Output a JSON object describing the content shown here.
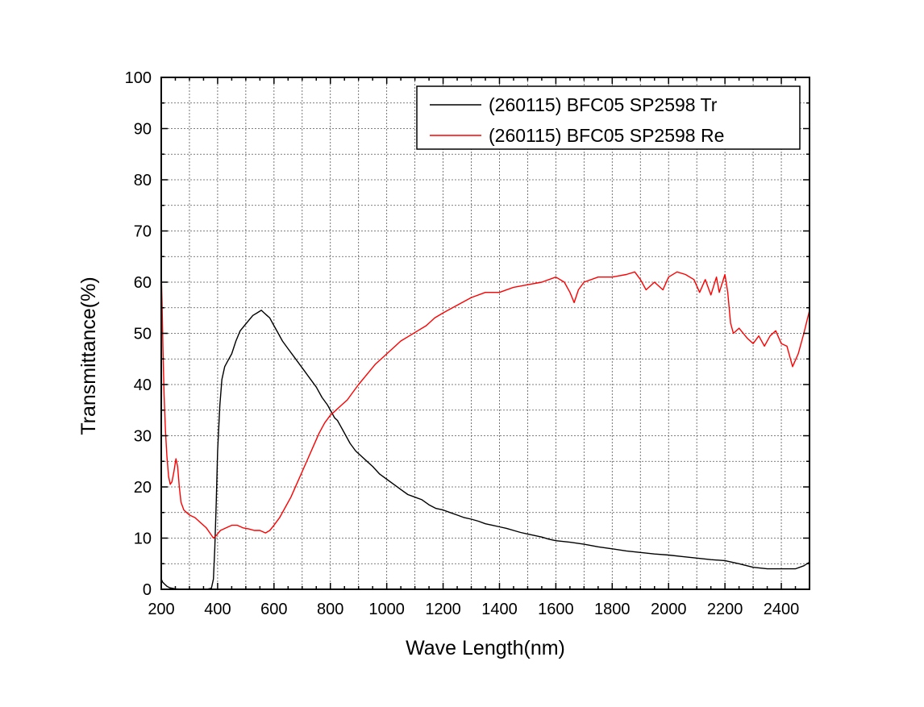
{
  "chart_data": {
    "type": "line",
    "xlabel": "Wave Length(nm)",
    "ylabel": "Transmittance(%)",
    "xlim": [
      200,
      2500
    ],
    "ylim": [
      0,
      100
    ],
    "x_ticks": [
      200,
      400,
      600,
      800,
      1000,
      1200,
      1400,
      1600,
      1800,
      2000,
      2200,
      2400
    ],
    "y_ticks": [
      0,
      10,
      20,
      30,
      40,
      50,
      60,
      70,
      80,
      90,
      100
    ],
    "grid": true,
    "legend_position": "top-right",
    "series": [
      {
        "name": "(260115) BFC05 SP2598 Tr",
        "color": "#000000",
        "x": [
          200,
          205,
          212,
          220,
          230,
          250,
          280,
          320,
          360,
          378,
          385,
          390,
          395,
          400,
          408,
          415,
          425,
          435,
          450,
          465,
          480,
          495,
          510,
          525,
          540,
          555,
          565,
          575,
          585,
          600,
          615,
          630,
          650,
          670,
          690,
          710,
          730,
          750,
          770,
          790,
          805,
          815,
          825,
          835,
          845,
          855,
          870,
          890,
          910,
          930,
          950,
          975,
          1000,
          1025,
          1050,
          1075,
          1100,
          1125,
          1150,
          1175,
          1200,
          1225,
          1250,
          1275,
          1300,
          1325,
          1350,
          1375,
          1400,
          1425,
          1450,
          1475,
          1500,
          1525,
          1550,
          1575,
          1600,
          1650,
          1700,
          1750,
          1800,
          1850,
          1900,
          1950,
          2000,
          2050,
          2100,
          2150,
          2200,
          2250,
          2300,
          2350,
          2400,
          2450,
          2480,
          2500
        ],
        "values": [
          2.0,
          1.4,
          1.0,
          0.6,
          0.3,
          0.1,
          0.0,
          0.0,
          0.0,
          0.2,
          2.0,
          8.0,
          17.0,
          27.0,
          36.0,
          41.0,
          43.5,
          44.5,
          46.0,
          48.5,
          50.5,
          51.5,
          52.5,
          53.5,
          54.0,
          54.5,
          54.0,
          53.5,
          53.0,
          51.5,
          50.0,
          48.5,
          47.0,
          45.5,
          44.0,
          42.5,
          41.0,
          39.5,
          37.5,
          36.0,
          34.5,
          33.5,
          33.0,
          32.0,
          31.0,
          30.0,
          28.5,
          27.0,
          26.0,
          25.0,
          24.0,
          22.5,
          21.5,
          20.5,
          19.5,
          18.5,
          18.0,
          17.5,
          16.5,
          15.8,
          15.5,
          15.0,
          14.5,
          14.0,
          13.7,
          13.3,
          12.8,
          12.5,
          12.2,
          11.9,
          11.5,
          11.1,
          10.8,
          10.5,
          10.2,
          9.8,
          9.5,
          9.2,
          8.8,
          8.3,
          7.9,
          7.5,
          7.2,
          6.9,
          6.7,
          6.4,
          6.1,
          5.8,
          5.6,
          5.0,
          4.3,
          4.0,
          4.0,
          4.0,
          4.6,
          5.3
        ]
      },
      {
        "name": "(260115) BFC05 SP2598 Re",
        "color": "#ff0000",
        "x": [
          200,
          203,
          206,
          210,
          215,
          220,
          226,
          232,
          238,
          245,
          252,
          258,
          264,
          270,
          280,
          290,
          300,
          320,
          340,
          360,
          375,
          385,
          395,
          410,
          430,
          450,
          470,
          490,
          510,
          530,
          550,
          570,
          585,
          600,
          620,
          640,
          660,
          680,
          700,
          720,
          740,
          760,
          780,
          800,
          820,
          840,
          860,
          880,
          900,
          930,
          960,
          990,
          1020,
          1050,
          1080,
          1110,
          1140,
          1170,
          1200,
          1250,
          1300,
          1350,
          1400,
          1450,
          1500,
          1550,
          1600,
          1630,
          1650,
          1665,
          1680,
          1700,
          1750,
          1800,
          1850,
          1880,
          1900,
          1920,
          1950,
          1980,
          2000,
          2030,
          2060,
          2090,
          2110,
          2130,
          2150,
          2170,
          2180,
          2200,
          2210,
          2220,
          2230,
          2250,
          2280,
          2300,
          2320,
          2340,
          2360,
          2380,
          2400,
          2420,
          2440,
          2460,
          2480,
          2500
        ],
        "values": [
          62.0,
          56.0,
          47.0,
          38.0,
          31.0,
          26.0,
          22.0,
          20.5,
          21.0,
          23.0,
          25.5,
          24.0,
          20.0,
          17.0,
          15.5,
          15.0,
          14.5,
          14.0,
          13.0,
          12.0,
          10.8,
          10.0,
          10.5,
          11.5,
          12.0,
          12.5,
          12.5,
          12.0,
          11.8,
          11.5,
          11.5,
          11.0,
          11.5,
          12.5,
          14.0,
          16.0,
          18.0,
          20.5,
          23.0,
          25.5,
          28.0,
          30.5,
          32.5,
          34.0,
          35.0,
          36.0,
          37.0,
          38.5,
          40.0,
          42.0,
          44.0,
          45.5,
          47.0,
          48.5,
          49.5,
          50.5,
          51.5,
          53.0,
          54.0,
          55.5,
          57.0,
          58.0,
          58.0,
          59.0,
          59.5,
          60.0,
          61.0,
          60.0,
          58.0,
          56.0,
          58.5,
          60.0,
          61.0,
          61.0,
          61.5,
          62.0,
          60.5,
          58.5,
          60.0,
          58.5,
          61.0,
          62.0,
          61.5,
          60.5,
          58.0,
          60.5,
          57.5,
          61.0,
          58.0,
          61.5,
          58.0,
          52.0,
          50.0,
          51.0,
          49.0,
          48.0,
          49.5,
          47.5,
          49.5,
          50.5,
          48.0,
          47.5,
          43.5,
          46.0,
          50.0,
          54.5
        ]
      }
    ]
  }
}
